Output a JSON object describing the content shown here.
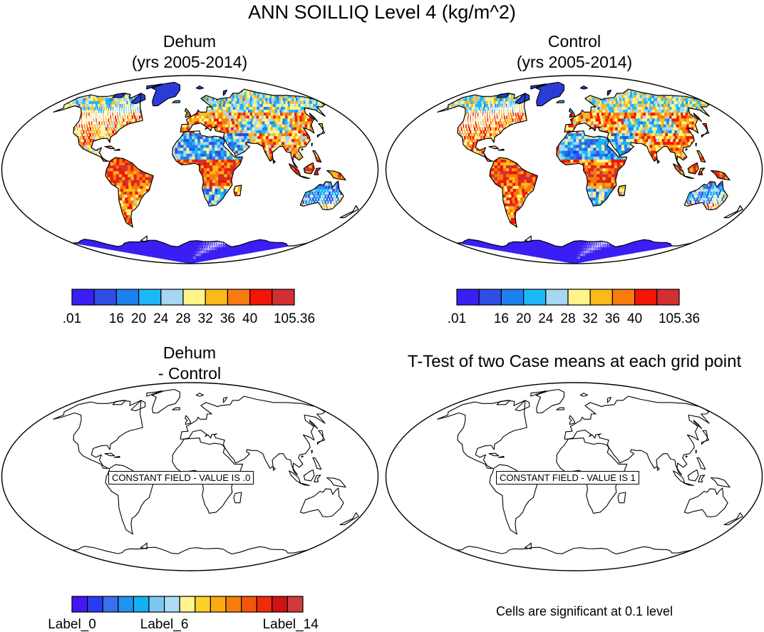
{
  "title": "ANN SOILLIQ Level 4 (kg/m^2)",
  "panels": [
    {
      "id": "dehum",
      "title_line1": "Dehum",
      "title_line2": "(yrs 2005-2014)",
      "type": "field"
    },
    {
      "id": "control",
      "title_line1": "Control",
      "title_line2": "(yrs 2005-2014)",
      "type": "field"
    },
    {
      "id": "diff",
      "title_line1": "Dehum",
      "title_line2": " - Control",
      "type": "constant",
      "message": "CONSTANT FIELD - VALUE IS .0"
    },
    {
      "id": "ttest",
      "title_line1": "T-Test of two Case means at each grid point",
      "title_line2": "",
      "type": "constant",
      "message": "CONSTANT FIELD - VALUE IS 1"
    }
  ],
  "colorbar_top": {
    "colors": [
      "#3a1ff5",
      "#2e4ee6",
      "#1c80f0",
      "#1cb8f5",
      "#a6d6f2",
      "#fff48a",
      "#fbb81a",
      "#f77b0e",
      "#f21508",
      "#d23030"
    ],
    "labels": [
      ".01",
      "16",
      "20",
      "24",
      "28",
      "32",
      "36",
      "40",
      "105.36"
    ]
  },
  "colorbar_bottom": {
    "colors": [
      "#4317f2",
      "#2a3cf0",
      "#3a70ec",
      "#2392ee",
      "#14b1f2",
      "#79c9f2",
      "#aedbf4",
      "#fff58c",
      "#fdd226",
      "#fbaa14",
      "#f77e0c",
      "#f25709",
      "#f12a0c",
      "#d11212",
      "#d03a3a"
    ],
    "labels": [
      "Label_0",
      "Label_6",
      "Label_14"
    ]
  },
  "footnote": "Cells are significant at 0.1 level"
}
